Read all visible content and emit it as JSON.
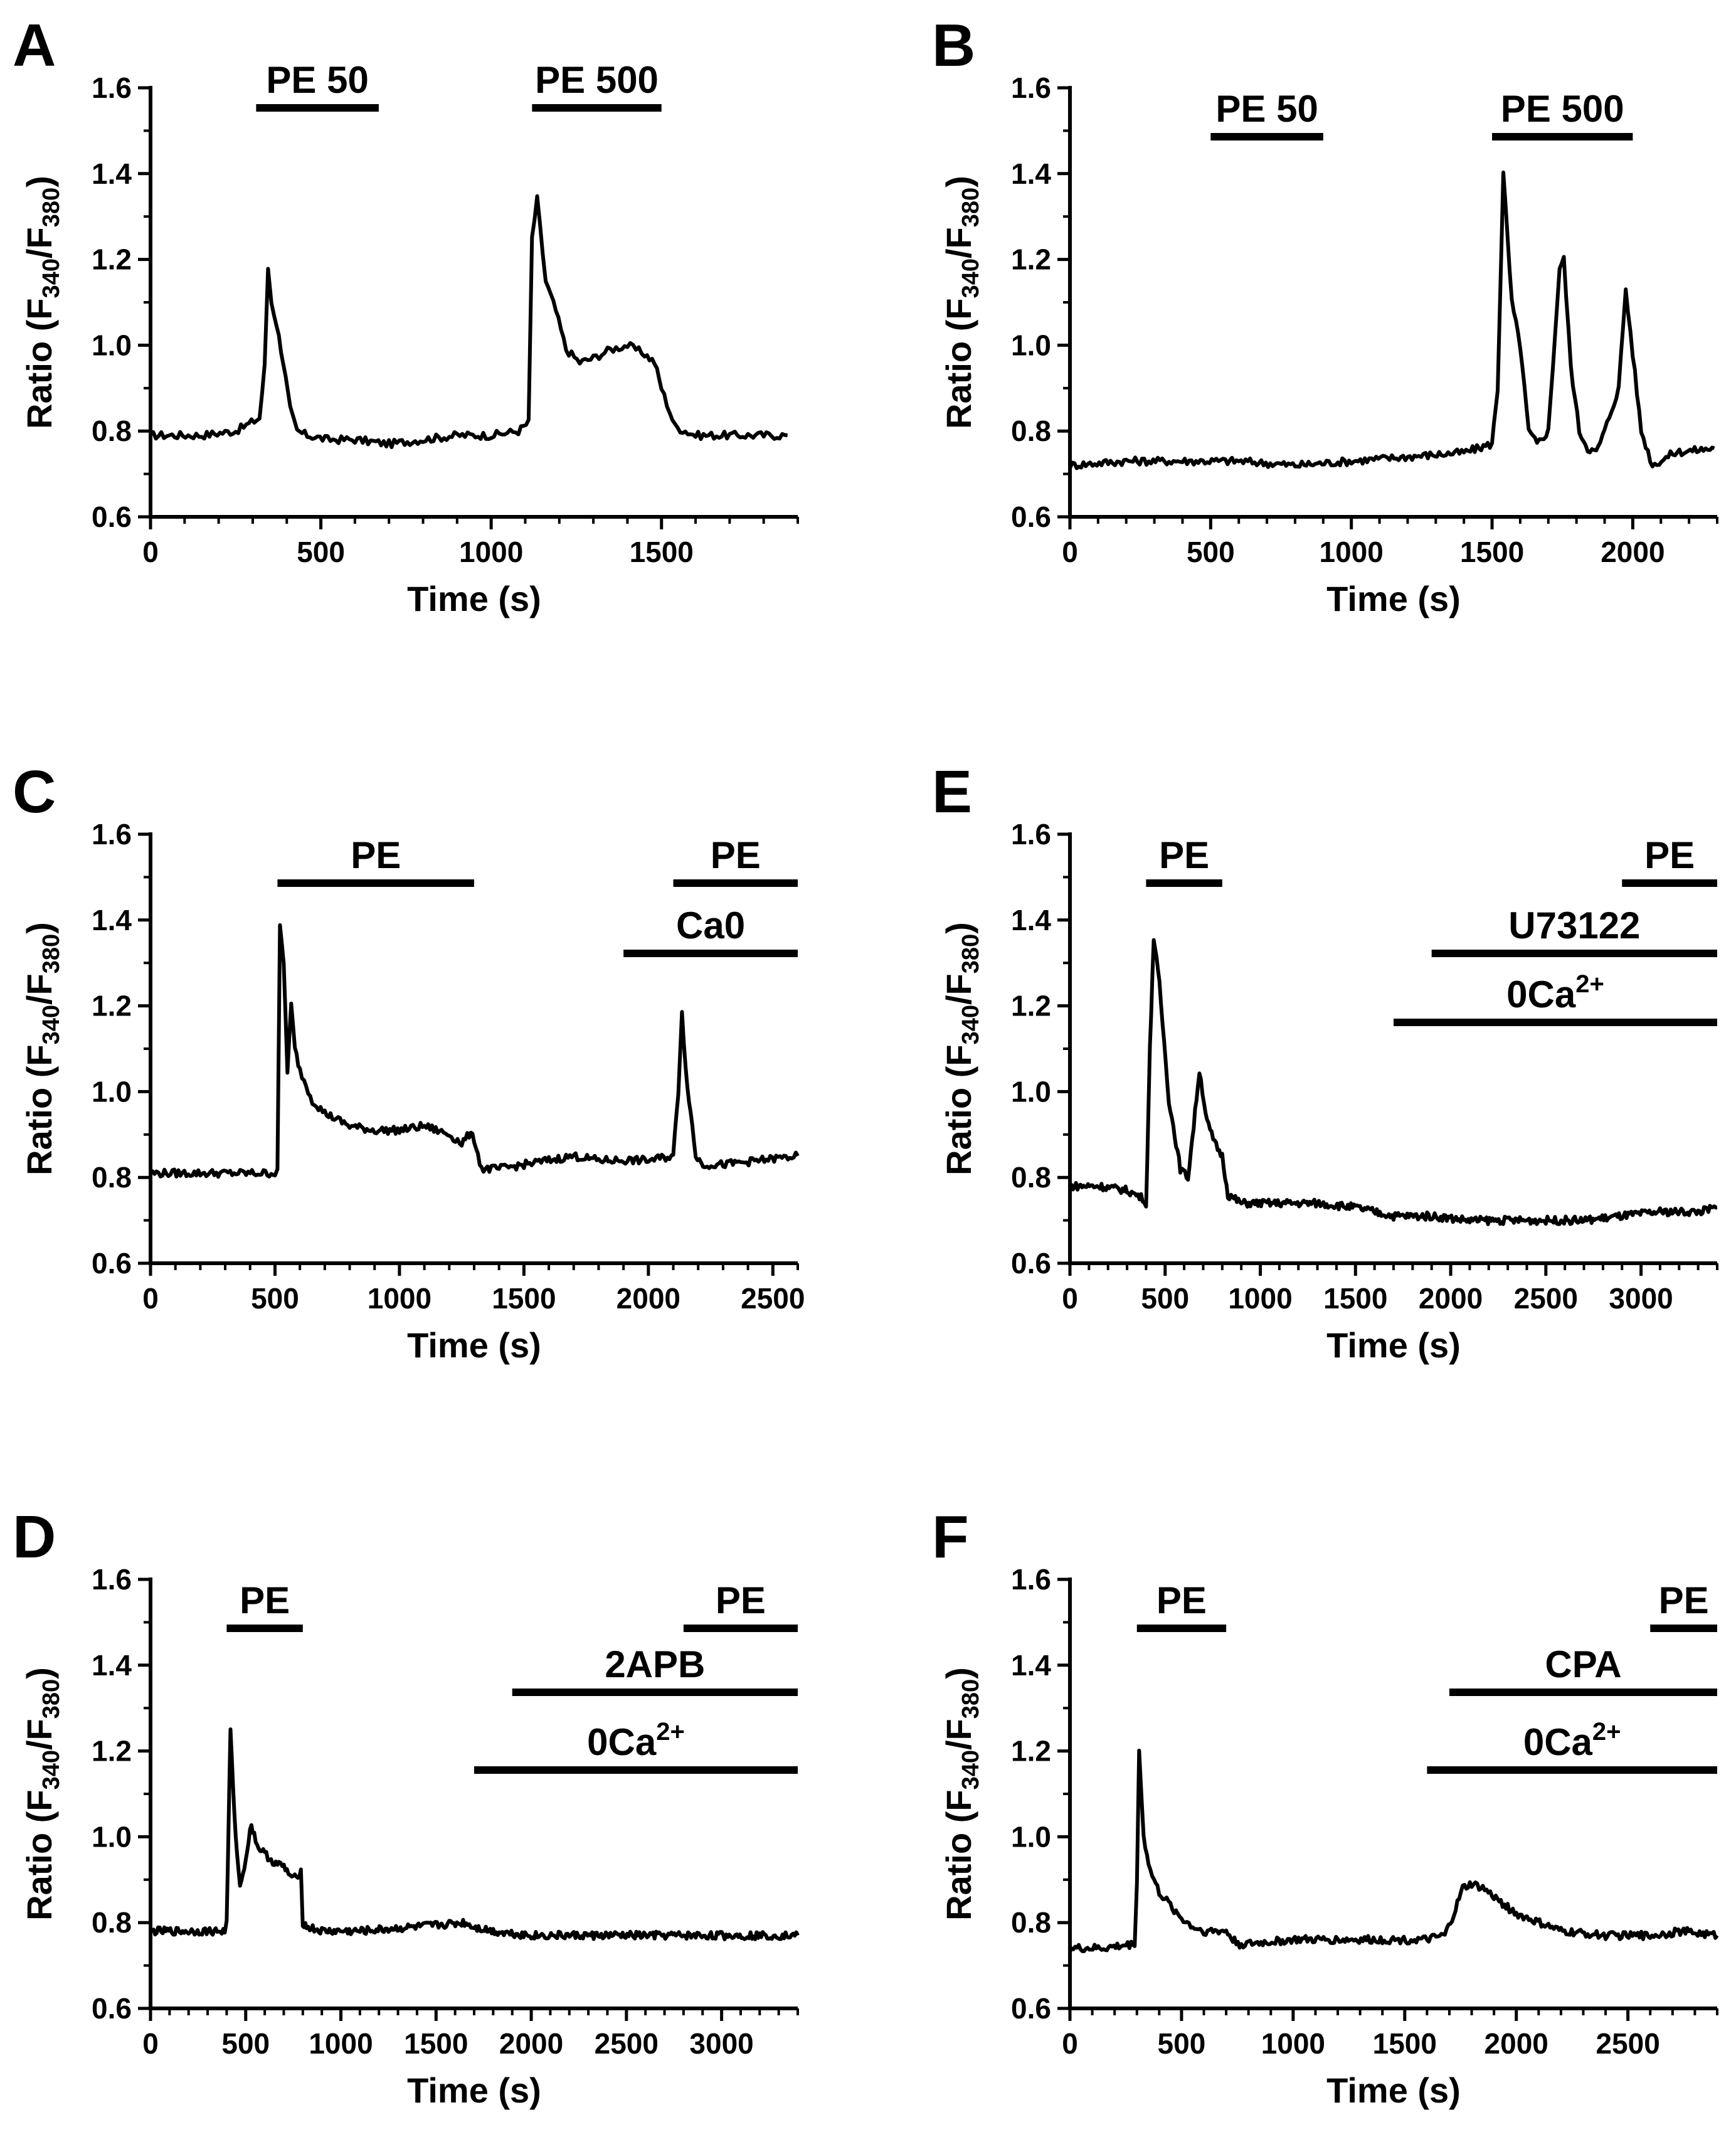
{
  "colors": {
    "trace": "#000000",
    "background": "#ffffff"
  },
  "chart_data": [
    {
      "panel": "A",
      "type": "line",
      "xlabel": "Time (s)",
      "ylabel": "Ratio (F340/F380)",
      "xlim": [
        0,
        1900
      ],
      "ylim": [
        0.6,
        1.6
      ],
      "xticks": [
        0,
        500,
        1000,
        1500
      ],
      "yticks": [
        0.6,
        0.8,
        1.0,
        1.2,
        1.4,
        1.6
      ],
      "annotations": [
        {
          "label": "PE 50",
          "start": 310,
          "end": 670
        },
        {
          "label": "PE 500",
          "start": 1120,
          "end": 1500
        }
      ],
      "series": [
        {
          "name": "trace",
          "x": [
            0,
            150,
            250,
            320,
            335,
            345,
            355,
            370,
            390,
            410,
            430,
            460,
            520,
            600,
            700,
            800,
            900,
            1000,
            1080,
            1110,
            1120,
            1135,
            1160,
            1190,
            1220,
            1260,
            1300,
            1350,
            1400,
            1450,
            1480,
            1500,
            1540,
            1600,
            1700,
            1800,
            1870
          ],
          "y": [
            0.79,
            0.79,
            0.8,
            0.83,
            0.95,
            1.18,
            1.1,
            1.05,
            0.96,
            0.85,
            0.8,
            0.79,
            0.78,
            0.78,
            0.77,
            0.78,
            0.79,
            0.79,
            0.8,
            0.82,
            1.25,
            1.34,
            1.15,
            1.08,
            0.99,
            0.96,
            0.97,
            0.99,
            1.0,
            0.98,
            0.96,
            0.9,
            0.81,
            0.79,
            0.79,
            0.79,
            0.79
          ]
        }
      ]
    },
    {
      "panel": "B",
      "type": "line",
      "xlabel": "Time (s)",
      "ylabel": "Ratio (F340/F380)",
      "xlim": [
        0,
        2300
      ],
      "ylim": [
        0.6,
        1.6
      ],
      "xticks": [
        0,
        500,
        1000,
        1500,
        2000
      ],
      "yticks": [
        0.6,
        0.8,
        1.0,
        1.2,
        1.4,
        1.6
      ],
      "annotations": [
        {
          "label": "PE 50",
          "start": 500,
          "end": 900
        },
        {
          "label": "PE 500",
          "start": 1500,
          "end": 2000
        }
      ],
      "series": [
        {
          "name": "trace",
          "x": [
            0,
            200,
            400,
            600,
            800,
            1000,
            1200,
            1400,
            1500,
            1520,
            1540,
            1570,
            1600,
            1630,
            1660,
            1700,
            1740,
            1755,
            1780,
            1810,
            1840,
            1870,
            1900,
            1950,
            1975,
            2000,
            2030,
            2070,
            2150,
            2290
          ],
          "y": [
            0.72,
            0.73,
            0.73,
            0.73,
            0.72,
            0.73,
            0.74,
            0.75,
            0.77,
            0.9,
            1.4,
            1.1,
            1.0,
            0.8,
            0.77,
            0.8,
            1.18,
            1.2,
            0.95,
            0.8,
            0.76,
            0.75,
            0.8,
            0.9,
            1.13,
            0.98,
            0.8,
            0.72,
            0.75,
            0.76
          ]
        }
      ]
    },
    {
      "panel": "C",
      "type": "line",
      "xlabel": "Time (s)",
      "ylabel": "Ratio (F340/F380)",
      "xlim": [
        0,
        2600
      ],
      "ylim": [
        0.6,
        1.6
      ],
      "xticks": [
        0,
        500,
        1000,
        1500,
        2000,
        2500
      ],
      "yticks": [
        0.6,
        0.8,
        1.0,
        1.2,
        1.4,
        1.6
      ],
      "annotations": [
        {
          "label": "PE",
          "start": 510,
          "end": 1300
        },
        {
          "label": "PE",
          "start": 2100,
          "end": 2600
        },
        {
          "label": "Ca0",
          "start": 1900,
          "end": 2600
        }
      ],
      "series": [
        {
          "name": "trace",
          "x": [
            0,
            200,
            400,
            500,
            510,
            520,
            535,
            550,
            565,
            580,
            600,
            650,
            700,
            800,
            900,
            1000,
            1100,
            1200,
            1250,
            1280,
            1300,
            1330,
            1400,
            1500,
            1600,
            1700,
            1800,
            1900,
            2000,
            2100,
            2120,
            2135,
            2150,
            2170,
            2190,
            2220,
            2300,
            2450,
            2600
          ],
          "y": [
            0.81,
            0.81,
            0.81,
            0.81,
            0.82,
            1.38,
            1.3,
            1.05,
            1.2,
            1.1,
            1.05,
            0.98,
            0.95,
            0.92,
            0.91,
            0.91,
            0.92,
            0.9,
            0.88,
            0.9,
            0.89,
            0.82,
            0.82,
            0.83,
            0.84,
            0.85,
            0.84,
            0.84,
            0.84,
            0.85,
            1.0,
            1.19,
            1.05,
            0.95,
            0.85,
            0.83,
            0.83,
            0.84,
            0.85
          ]
        }
      ]
    },
    {
      "panel": "E",
      "type": "line",
      "xlabel": "Time (s)",
      "ylabel": "Ratio (F340/F380)",
      "xlim": [
        0,
        3400
      ],
      "ylim": [
        0.6,
        1.6
      ],
      "xticks": [
        0,
        500,
        1000,
        1500,
        2000,
        2500,
        3000
      ],
      "yticks": [
        0.6,
        0.8,
        1.0,
        1.2,
        1.4,
        1.6
      ],
      "annotations": [
        {
          "label": "PE",
          "start": 400,
          "end": 800
        },
        {
          "label": "PE",
          "start": 2900,
          "end": 3400
        },
        {
          "label": "U73122",
          "start": 1900,
          "end": 3400
        },
        {
          "label": "0Ca2+",
          "start": 1700,
          "end": 3400
        }
      ],
      "series": [
        {
          "name": "trace",
          "x": [
            0,
            150,
            300,
            390,
            400,
            420,
            440,
            470,
            520,
            580,
            620,
            650,
            680,
            720,
            760,
            800,
            830,
            900,
            1100,
            1300,
            1500,
            1700,
            1900,
            2100,
            2300,
            2500,
            2700,
            2900,
            3100,
            3300,
            3400
          ],
          "y": [
            0.78,
            0.78,
            0.77,
            0.75,
            0.73,
            1.1,
            1.36,
            1.25,
            0.98,
            0.82,
            0.8,
            0.92,
            1.05,
            0.93,
            0.88,
            0.85,
            0.76,
            0.74,
            0.74,
            0.74,
            0.73,
            0.71,
            0.71,
            0.7,
            0.7,
            0.7,
            0.7,
            0.71,
            0.72,
            0.72,
            0.73
          ]
        }
      ]
    },
    {
      "panel": "D",
      "type": "line",
      "xlabel": "Time (s)",
      "ylabel": "Ratio (F340/F380)",
      "xlim": [
        0,
        3400
      ],
      "ylim": [
        0.6,
        1.6
      ],
      "xticks": [
        0,
        500,
        1000,
        1500,
        2000,
        2500,
        3000
      ],
      "yticks": [
        0.6,
        0.8,
        1.0,
        1.2,
        1.4,
        1.6
      ],
      "annotations": [
        {
          "label": "PE",
          "start": 400,
          "end": 800
        },
        {
          "label": "PE",
          "start": 2800,
          "end": 3400
        },
        {
          "label": "2APB",
          "start": 1900,
          "end": 3400
        },
        {
          "label": "0Ca2+",
          "start": 1700,
          "end": 3400
        }
      ],
      "series": [
        {
          "name": "trace",
          "x": [
            0,
            200,
            390,
            400,
            420,
            440,
            470,
            500,
            530,
            560,
            600,
            650,
            700,
            750,
            790,
            800,
            820,
            900,
            1100,
            1400,
            1650,
            1700,
            1800,
            2000,
            2400,
            2800,
            3200,
            3400
          ],
          "y": [
            0.78,
            0.78,
            0.78,
            0.8,
            1.25,
            1.05,
            0.88,
            0.95,
            1.03,
            0.98,
            0.96,
            0.94,
            0.93,
            0.9,
            0.92,
            0.8,
            0.79,
            0.78,
            0.78,
            0.79,
            0.8,
            0.79,
            0.78,
            0.77,
            0.77,
            0.77,
            0.77,
            0.77
          ]
        }
      ]
    },
    {
      "panel": "F",
      "type": "line",
      "xlabel": "Time (s)",
      "ylabel": "Ratio (F340/F380)",
      "xlim": [
        0,
        2900
      ],
      "ylim": [
        0.6,
        1.6
      ],
      "xticks": [
        0,
        500,
        1000,
        1500,
        2000,
        2500
      ],
      "yticks": [
        0.6,
        0.8,
        1.0,
        1.2,
        1.4,
        1.6
      ],
      "annotations": [
        {
          "label": "PE",
          "start": 300,
          "end": 700
        },
        {
          "label": "PE",
          "start": 2600,
          "end": 2900
        },
        {
          "label": "CPA",
          "start": 1700,
          "end": 2900
        },
        {
          "label": "0Ca2+",
          "start": 1600,
          "end": 2900
        }
      ],
      "series": [
        {
          "name": "trace",
          "x": [
            0,
            150,
            290,
            300,
            310,
            330,
            360,
            400,
            450,
            500,
            550,
            600,
            650,
            700,
            730,
            760,
            800,
            1000,
            1200,
            1400,
            1600,
            1680,
            1720,
            1760,
            1800,
            1850,
            1900,
            2000,
            2200,
            2400,
            2600,
            2750,
            2900
          ],
          "y": [
            0.74,
            0.74,
            0.75,
            0.9,
            1.2,
            1.0,
            0.92,
            0.87,
            0.84,
            0.81,
            0.79,
            0.78,
            0.78,
            0.78,
            0.76,
            0.75,
            0.75,
            0.76,
            0.76,
            0.76,
            0.76,
            0.77,
            0.82,
            0.88,
            0.89,
            0.88,
            0.86,
            0.82,
            0.78,
            0.77,
            0.77,
            0.78,
            0.77
          ]
        }
      ]
    }
  ]
}
